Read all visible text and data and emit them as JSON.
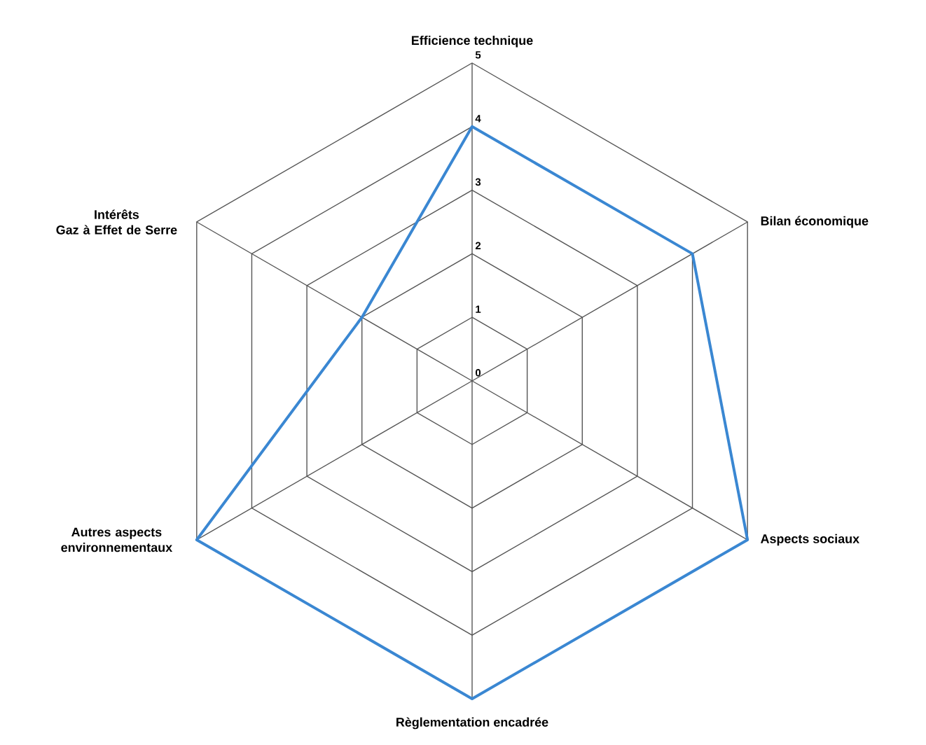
{
  "chart_data": {
    "type": "radar",
    "categories": [
      "Efficience technique",
      "Bilan économique",
      "Aspects sociaux",
      "Règlementation encadrée",
      "Autres aspects environnementaux",
      "Intérêts\nGaz à Effet de Serre"
    ],
    "series": [
      {
        "color": "#3a87d2",
        "values": [
          4,
          4,
          5,
          5,
          5,
          2
        ]
      }
    ],
    "ylim": [
      0,
      5
    ],
    "yticks": [
      0,
      1,
      2,
      3,
      4,
      5
    ],
    "grid": true
  }
}
